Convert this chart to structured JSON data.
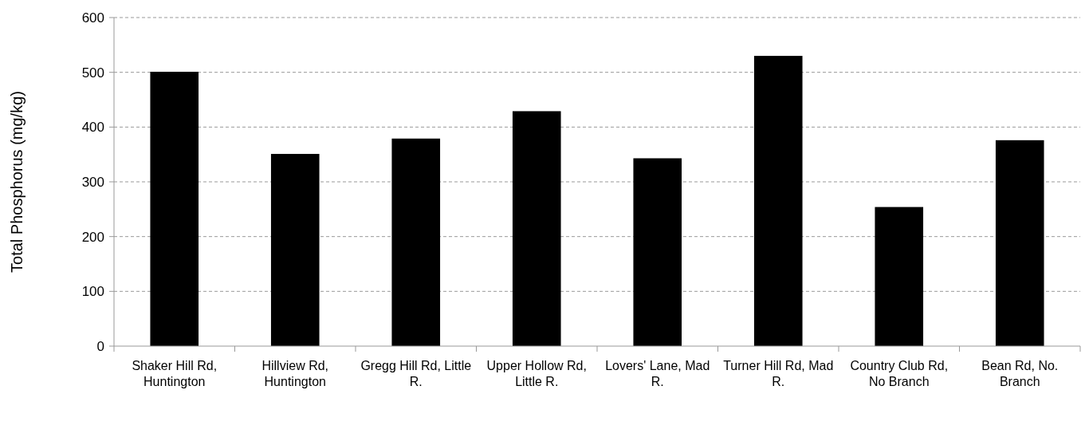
{
  "chart_data": {
    "type": "bar",
    "ylabel": "Total Phosphorus (mg/kg)",
    "categories": [
      "Shaker Hill Rd, Huntington",
      "Hillview Rd, Huntington",
      "Gregg Hill Rd, Little R.",
      "Upper Hollow Rd, Little R.",
      "Lovers' Lane, Mad R.",
      "Turner Hill Rd, Mad R.",
      "Country Club Rd, No Branch",
      "Bean Rd, No. Branch"
    ],
    "values": [
      501,
      351,
      379,
      429,
      343,
      530,
      254,
      376
    ],
    "color": "#000000",
    "ylim": [
      0,
      600
    ],
    "yticks": [
      0,
      100,
      200,
      300,
      400,
      500,
      600
    ],
    "grid": "y"
  }
}
